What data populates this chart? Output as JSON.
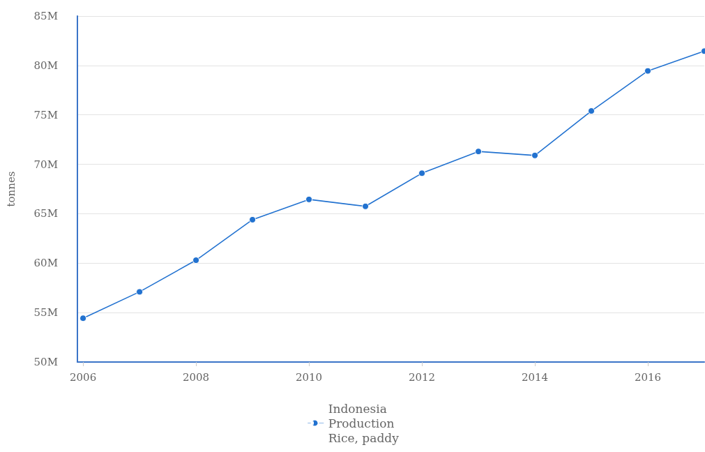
{
  "chart_data": {
    "type": "line",
    "ylabel": "tonnes",
    "x": [
      2006,
      2007,
      2008,
      2009,
      2010,
      2011,
      2012,
      2013,
      2014,
      2015,
      2016,
      2017
    ],
    "series": [
      {
        "name": "Indonesia\nProduction\nRice, paddy",
        "color": "#2272d0",
        "values": [
          54430000,
          57100000,
          60300000,
          64400000,
          66450000,
          65750000,
          69100000,
          71300000,
          70900000,
          75400000,
          79450000,
          81450000
        ]
      }
    ],
    "xlim": [
      2005.9,
      2017
    ],
    "xticks": [
      2006,
      2008,
      2010,
      2012,
      2014,
      2016
    ],
    "ylim": [
      50000000,
      85000000
    ],
    "yticks": [
      {
        "value": 50000000,
        "label": "50M"
      },
      {
        "value": 55000000,
        "label": "55M"
      },
      {
        "value": 60000000,
        "label": "60M"
      },
      {
        "value": 65000000,
        "label": "65M"
      },
      {
        "value": 70000000,
        "label": "70M"
      },
      {
        "value": 75000000,
        "label": "75M"
      },
      {
        "value": 80000000,
        "label": "80M"
      },
      {
        "value": 85000000,
        "label": "85M"
      }
    ],
    "grid": "y",
    "legend": "bottom",
    "marker": "circle",
    "line_style": "solid"
  }
}
